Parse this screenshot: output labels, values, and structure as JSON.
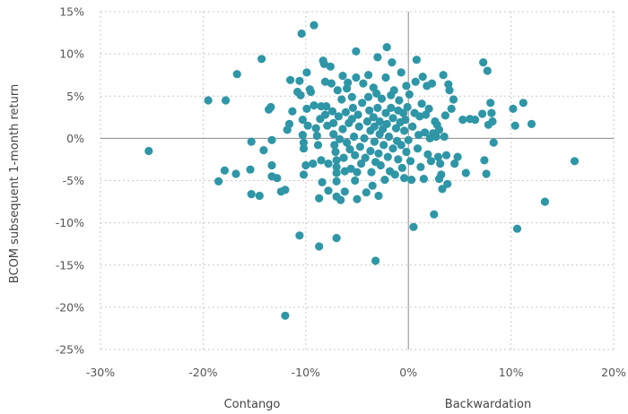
{
  "chart_data": {
    "type": "scatter",
    "title": "",
    "ylabel": "BCOM subsequent 1-month return",
    "x_annotations": {
      "left": "Contango",
      "right": "Backwardation"
    },
    "xlim": [
      -30,
      20
    ],
    "ylim": [
      -25,
      15
    ],
    "x_ticks": [
      {
        "value": -30,
        "label": "-30%"
      },
      {
        "value": -20,
        "label": "-20%"
      },
      {
        "value": -10,
        "label": "-10%"
      },
      {
        "value": 0,
        "label": "0%"
      },
      {
        "value": 10,
        "label": "10%"
      },
      {
        "value": 20,
        "label": "20%"
      }
    ],
    "y_ticks": [
      {
        "value": 15,
        "label": "15%"
      },
      {
        "value": 10,
        "label": "10%"
      },
      {
        "value": 5,
        "label": "5%"
      },
      {
        "value": 0,
        "label": "0%"
      },
      {
        "value": -5,
        "label": "-5%"
      },
      {
        "value": -10,
        "label": "-10%"
      },
      {
        "value": -15,
        "label": "-15%"
      },
      {
        "value": -20,
        "label": "-20%"
      },
      {
        "value": -25,
        "label": "-25%"
      }
    ],
    "grid": true,
    "color": "#2e96a6",
    "points": [
      [
        -25.3,
        -1.5
      ],
      [
        -19.5,
        4.5
      ],
      [
        -17.8,
        4.5
      ],
      [
        -16.7,
        7.6
      ],
      [
        -18.5,
        -5.1
      ],
      [
        -17.9,
        -3.8
      ],
      [
        -16.8,
        -4.2
      ],
      [
        -15.3,
        -0.4
      ],
      [
        -15.4,
        -3.7
      ],
      [
        -15.3,
        -6.6
      ],
      [
        -14.5,
        -6.8
      ],
      [
        -14.3,
        9.4
      ],
      [
        -14.1,
        -1.4
      ],
      [
        -13.6,
        3.4
      ],
      [
        -13.4,
        3.7
      ],
      [
        -13.3,
        -0.2
      ],
      [
        -13.3,
        -3.2
      ],
      [
        -13.3,
        -4.5
      ],
      [
        -12.8,
        -4.7
      ],
      [
        -12.4,
        -6.3
      ],
      [
        -12.0,
        -6.1
      ],
      [
        -12.0,
        -21.0
      ],
      [
        -11.8,
        1.0
      ],
      [
        -11.6,
        1.7
      ],
      [
        -11.5,
        6.9
      ],
      [
        -11.3,
        3.2
      ],
      [
        -10.8,
        5.5
      ],
      [
        -10.6,
        6.8
      ],
      [
        -10.5,
        5.1
      ],
      [
        -10.4,
        12.4
      ],
      [
        -10.6,
        -11.5
      ],
      [
        -10.3,
        2.2
      ],
      [
        -10.3,
        0.4
      ],
      [
        -10.2,
        -0.5
      ],
      [
        -10.2,
        -1.2
      ],
      [
        -10.2,
        -4.3
      ],
      [
        -10.0,
        -3.2
      ],
      [
        -9.9,
        7.8
      ],
      [
        -9.9,
        3.5
      ],
      [
        -9.8,
        1.5
      ],
      [
        -9.6,
        5.8
      ],
      [
        -9.5,
        5.5
      ],
      [
        -9.3,
        -3.0
      ],
      [
        -9.2,
        13.4
      ],
      [
        -9.2,
        3.9
      ],
      [
        -9.0,
        1.2
      ],
      [
        -8.9,
        0.3
      ],
      [
        -8.8,
        -0.8
      ],
      [
        -8.7,
        -7.1
      ],
      [
        -8.7,
        -12.8
      ],
      [
        -8.6,
        2.3
      ],
      [
        -8.5,
        3.8
      ],
      [
        -8.5,
        -2.6
      ],
      [
        -8.4,
        -5.2
      ],
      [
        -8.3,
        9.2
      ],
      [
        -8.2,
        8.8
      ],
      [
        -8.1,
        6.7
      ],
      [
        -8.1,
        2.8
      ],
      [
        -8.0,
        3.8
      ],
      [
        -7.9,
        1.5
      ],
      [
        -7.8,
        -3.0
      ],
      [
        -7.8,
        -6.2
      ],
      [
        -7.6,
        8.5
      ],
      [
        -7.5,
        6.5
      ],
      [
        -7.4,
        3.2
      ],
      [
        -7.3,
        1.8
      ],
      [
        -7.3,
        0.5
      ],
      [
        -7.2,
        -0.8
      ],
      [
        -7.1,
        -1.6
      ],
      [
        -7.0,
        -2.6
      ],
      [
        -7.0,
        -3.4
      ],
      [
        -7.0,
        -4.1
      ],
      [
        -7.0,
        -5.1
      ],
      [
        -7.0,
        -6.9
      ],
      [
        -7.0,
        -11.8
      ],
      [
        -6.9,
        5.7
      ],
      [
        -6.8,
        2.6
      ],
      [
        -6.7,
        -0.1
      ],
      [
        -6.6,
        -7.3
      ],
      [
        -6.5,
        4.6
      ],
      [
        -6.4,
        7.4
      ],
      [
        -6.4,
        1.1
      ],
      [
        -6.3,
        -2.3
      ],
      [
        -6.2,
        -3.9
      ],
      [
        -6.2,
        -6.3
      ],
      [
        -6.1,
        3.1
      ],
      [
        -6.0,
        5.9
      ],
      [
        -6.0,
        -0.5
      ],
      [
        -5.9,
        6.6
      ],
      [
        -5.8,
        1.8
      ],
      [
        -5.7,
        -1.3
      ],
      [
        -5.6,
        -3.6
      ],
      [
        -5.5,
        2.3
      ],
      [
        -5.5,
        4.9
      ],
      [
        -5.4,
        3.6
      ],
      [
        -5.3,
        0.2
      ],
      [
        -5.2,
        -2.0
      ],
      [
        -5.2,
        -5.0
      ],
      [
        -5.1,
        7.2
      ],
      [
        -5.1,
        10.3
      ],
      [
        -5.0,
        -7.2
      ],
      [
        -5.0,
        -4.0
      ],
      [
        -4.9,
        2.8
      ],
      [
        -4.8,
        1.4
      ],
      [
        -4.7,
        -1.0
      ],
      [
        -4.6,
        -3.0
      ],
      [
        -4.5,
        4.2
      ],
      [
        -4.4,
        6.5
      ],
      [
        -4.3,
        0.0
      ],
      [
        -4.2,
        -2.3
      ],
      [
        -4.1,
        -6.4
      ],
      [
        -4.0,
        2.0
      ],
      [
        -3.9,
        7.5
      ],
      [
        -3.9,
        4.9
      ],
      [
        -3.8,
        3.3
      ],
      [
        -3.7,
        0.9
      ],
      [
        -3.7,
        -1.5
      ],
      [
        -3.6,
        -4.0
      ],
      [
        -3.5,
        -5.6
      ],
      [
        -3.4,
        2.5
      ],
      [
        -3.4,
        6.0
      ],
      [
        -3.3,
        1.4
      ],
      [
        -3.3,
        -0.4
      ],
      [
        -3.2,
        -2.8
      ],
      [
        -3.2,
        -14.5
      ],
      [
        -3.1,
        5.3
      ],
      [
        -3.0,
        9.6
      ],
      [
        -3.0,
        3.6
      ],
      [
        -2.9,
        -1.8
      ],
      [
        -2.9,
        -6.8
      ],
      [
        -2.8,
        2.0
      ],
      [
        -2.8,
        0.5
      ],
      [
        -2.7,
        -3.2
      ],
      [
        -2.6,
        4.7
      ],
      [
        -2.5,
        1.1
      ],
      [
        -2.4,
        -0.8
      ],
      [
        -2.3,
        -4.9
      ],
      [
        -2.2,
        7.2
      ],
      [
        -2.2,
        3.0
      ],
      [
        -2.1,
        10.8
      ],
      [
        -2.1,
        1.7
      ],
      [
        -2.0,
        -2.2
      ],
      [
        -1.9,
        0.2
      ],
      [
        -1.8,
        -3.9
      ],
      [
        -1.7,
        5.1
      ],
      [
        -1.7,
        3.6
      ],
      [
        -1.6,
        9.0
      ],
      [
        -1.5,
        2.4
      ],
      [
        -1.5,
        -1.2
      ],
      [
        -1.4,
        5.7
      ],
      [
        -1.3,
        -4.3
      ],
      [
        -1.2,
        1.2
      ],
      [
        -1.1,
        -0.3
      ],
      [
        -1.0,
        3.3
      ],
      [
        -1.0,
        -2.5
      ],
      [
        -0.9,
        4.5
      ],
      [
        -0.8,
        1.9
      ],
      [
        -0.7,
        -0.8
      ],
      [
        -0.7,
        7.8
      ],
      [
        -0.6,
        -3.5
      ],
      [
        -0.5,
        3.0
      ],
      [
        -0.4,
        -4.7
      ],
      [
        -0.4,
        0.9
      ],
      [
        -0.3,
        2.2
      ],
      [
        -0.2,
        -1.6
      ],
      [
        -0.2,
        6.2
      ],
      [
        -0.1,
        3.7
      ],
      [
        0.0,
        -0.2
      ],
      [
        0.1,
        5.2
      ],
      [
        0.2,
        -2.7
      ],
      [
        0.3,
        -4.9
      ],
      [
        0.4,
        1.4
      ],
      [
        0.5,
        -10.5
      ],
      [
        0.6,
        3.0
      ],
      [
        0.7,
        6.7
      ],
      [
        0.8,
        9.3
      ],
      [
        0.9,
        -1.2
      ],
      [
        1.0,
        0.4
      ],
      [
        1.1,
        2.6
      ],
      [
        1.2,
        -3.4
      ],
      [
        1.3,
        4.1
      ],
      [
        1.4,
        7.3
      ],
      [
        1.5,
        -4.8
      ],
      [
        1.6,
        0.7
      ],
      [
        1.7,
        2.8
      ],
      [
        1.8,
        6.2
      ],
      [
        1.9,
        -1.9
      ],
      [
        2.0,
        3.5
      ],
      [
        2.1,
        0.0
      ],
      [
        2.2,
        -2.7
      ],
      [
        2.3,
        6.5
      ],
      [
        2.4,
        0.6
      ],
      [
        2.5,
        -9.0
      ],
      [
        2.6,
        2.0
      ],
      [
        2.7,
        0.2
      ],
      [
        2.8,
        1.6
      ],
      [
        2.9,
        -2.2
      ],
      [
        3.0,
        -4.8
      ],
      [
        3.0,
        1.0
      ],
      [
        3.1,
        -3.0
      ],
      [
        3.2,
        -4.3
      ],
      [
        3.3,
        -6.0
      ],
      [
        3.4,
        7.5
      ],
      [
        3.5,
        0.2
      ],
      [
        3.6,
        2.7
      ],
      [
        3.7,
        -2.0
      ],
      [
        3.8,
        -5.4
      ],
      [
        3.9,
        6.4
      ],
      [
        4.0,
        5.7
      ],
      [
        4.2,
        3.5
      ],
      [
        4.4,
        4.6
      ],
      [
        4.5,
        -3.0
      ],
      [
        4.8,
        -2.2
      ],
      [
        5.3,
        2.2
      ],
      [
        5.6,
        -4.1
      ],
      [
        6.0,
        2.3
      ],
      [
        6.5,
        2.2
      ],
      [
        7.2,
        2.9
      ],
      [
        7.3,
        9.0
      ],
      [
        7.4,
        -2.6
      ],
      [
        7.7,
        8.0
      ],
      [
        7.8,
        1.6
      ],
      [
        8.0,
        4.2
      ],
      [
        8.1,
        3.0
      ],
      [
        8.2,
        2.0
      ],
      [
        8.3,
        -0.5
      ],
      [
        10.2,
        3.5
      ],
      [
        10.4,
        1.5
      ],
      [
        10.6,
        -10.7
      ],
      [
        11.2,
        4.2
      ],
      [
        12.0,
        1.7
      ],
      [
        13.3,
        -7.5
      ],
      [
        16.2,
        -2.7
      ],
      [
        7.6,
        -4.2
      ]
    ]
  }
}
